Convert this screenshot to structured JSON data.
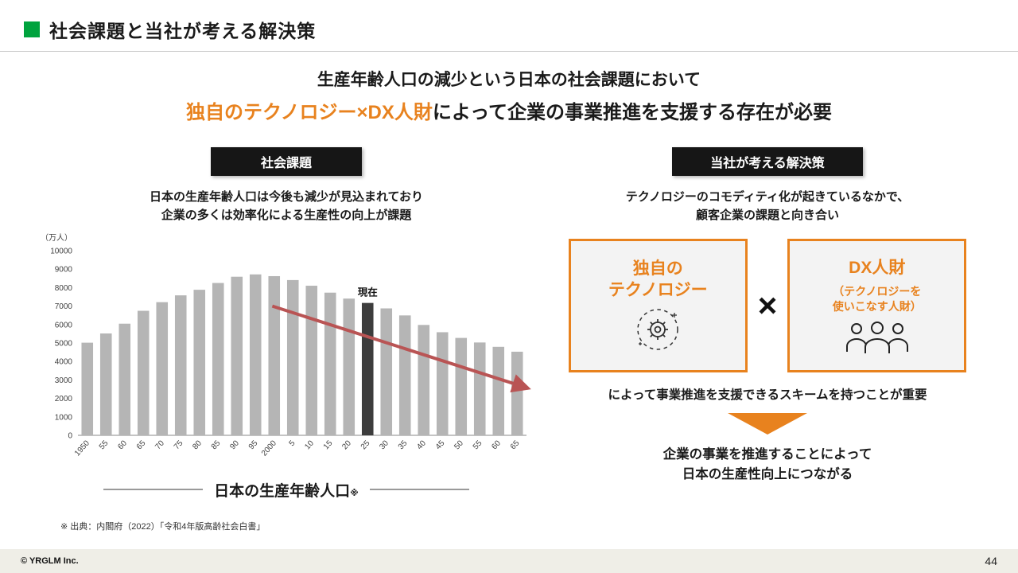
{
  "slide": {
    "title": "社会課題と当社が考える解決策",
    "page_number": "44",
    "footer_copyright": "© YRGLM Inc."
  },
  "headline": {
    "line1": "生産年齢人口の減少という日本の社会課題において",
    "line2_highlight": "独自のテクノロジー×DX人財",
    "line2_rest": "によって企業の事業推進を支援する存在が必要"
  },
  "left": {
    "badge": "社会課題",
    "desc_line1": "日本の生産年齢人口は今後も減少が見込まれており",
    "desc_line2": "企業の多くは効率化による生産性の向上が課題",
    "chart_caption": "日本の生産年齢人口",
    "chart_caption_note": "※",
    "footnote": "※ 出典：内閣府（2022）「令和4年版高齢社会白書」"
  },
  "right": {
    "badge": "当社が考える解決策",
    "desc_line1": "テクノロジーのコモディティ化が起きているなかで、",
    "desc_line2": "顧客企業の課題と向き合い",
    "box1_line1": "独自の",
    "box1_line2": "テクノロジー",
    "multiply": "×",
    "box2_title": "DX人財",
    "box2_sub1": "（テクノロジーを",
    "box2_sub2": "使いこなす人財）",
    "scheme_text": "によって事業推進を支援できるスキームを持つことが重要",
    "result_line1": "企業の事業を推進することによって",
    "result_line2": "日本の生産性向上につながる"
  },
  "colors": {
    "accent_orange": "#e8821e",
    "accent_green": "#00a33e",
    "bar_gray": "#b5b5b5",
    "bar_current": "#3d3d3d",
    "arrow_red": "#b95454",
    "axis_text": "#404040"
  },
  "chart_data": {
    "type": "bar",
    "title": "日本の生産年齢人口",
    "unit_label": "（万人）",
    "current_label": "現在",
    "categories": [
      "1950",
      "55",
      "60",
      "65",
      "70",
      "75",
      "80",
      "85",
      "90",
      "95",
      "2000",
      "5",
      "10",
      "15",
      "20",
      "25",
      "30",
      "35",
      "40",
      "45",
      "50",
      "55",
      "60",
      "65"
    ],
    "values": [
      5017,
      5517,
      6047,
      6744,
      7212,
      7581,
      7883,
      8251,
      8590,
      8716,
      8622,
      8409,
      8103,
      7728,
      7406,
      7170,
      6875,
      6494,
      5978,
      5584,
      5275,
      5028,
      4793,
      4529
    ],
    "current_index": 15,
    "ylim": [
      0,
      10000
    ],
    "ytick_step": 1000,
    "grid": false,
    "annotation_arrow": "declining trend from 2000s to 2065"
  }
}
